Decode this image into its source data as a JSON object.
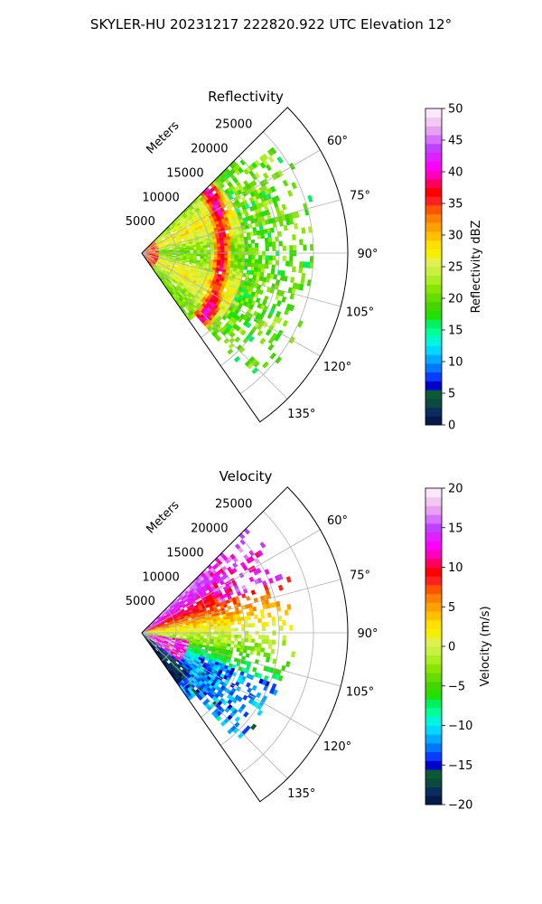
{
  "title": "SKYLER-HU  20231217  222820.922 UTC Elevation 12°",
  "colors": {
    "grid": "#b0b0b0",
    "axis": "#000000",
    "background": "#ffffff"
  },
  "chart_data": [
    {
      "type": "heatmap",
      "projection": "polar-sector",
      "title": "Reflectivity",
      "range_label": "Meters",
      "range_ticks": [
        5000,
        10000,
        15000,
        20000,
        25000
      ],
      "range_tick_labels": [
        "5000",
        "10000",
        "15000",
        "20000",
        "25000"
      ],
      "range_max": 30000,
      "theta_range_deg": [
        45,
        145
      ],
      "theta_ticks_deg": [
        60,
        75,
        90,
        105,
        120,
        135
      ],
      "theta_tick_labels": [
        "60°",
        "75°",
        "90°",
        "105°",
        "120°",
        "135°"
      ],
      "grid": true,
      "colorbar": {
        "label": "Reflectivity dBZ",
        "min": 0,
        "max": 50,
        "ticks": [
          0,
          5,
          10,
          15,
          20,
          25,
          30,
          35,
          40,
          45,
          50
        ],
        "tick_labels": [
          "0",
          "5",
          "10",
          "15",
          "20",
          "25",
          "30",
          "35",
          "40",
          "45",
          "50"
        ],
        "colors": [
          "#061a4a",
          "#0a2d5e",
          "#0b4a3f",
          "#0b5a35",
          "#0000cc",
          "#0a3cff",
          "#0077ff",
          "#00aaff",
          "#00d9ff",
          "#00f5e0",
          "#00ff99",
          "#00f060",
          "#22e000",
          "#44d400",
          "#66dd00",
          "#88e600",
          "#aaee22",
          "#c8f040",
          "#e0f050",
          "#f5f000",
          "#ffe000",
          "#ffc000",
          "#ffa000",
          "#ff7f00",
          "#ff5500",
          "#ff2020",
          "#ff0000",
          "#ff0060",
          "#ff00c0",
          "#ff00ff",
          "#e020ff",
          "#c040ff",
          "#d870ff",
          "#e8a0f0",
          "#f0c8f0",
          "#fbe8fb"
        ]
      },
      "field": {
        "description": "Sector-scan radar reflectivity field",
        "dominant_values": "mostly 20-30 dBZ near radar, arc of 30-40 dBZ near 11000-14000 m, sparse 15-22 dBZ beyond 15000 m out to ~25000 m"
      }
    },
    {
      "type": "heatmap",
      "projection": "polar-sector",
      "title": "Velocity",
      "range_label": "Meters",
      "range_ticks": [
        5000,
        10000,
        15000,
        20000,
        25000
      ],
      "range_tick_labels": [
        "5000",
        "10000",
        "15000",
        "20000",
        "25000"
      ],
      "range_max": 30000,
      "theta_range_deg": [
        45,
        145
      ],
      "theta_ticks_deg": [
        60,
        75,
        90,
        105,
        120,
        135
      ],
      "theta_tick_labels": [
        "60°",
        "75°",
        "90°",
        "105°",
        "120°",
        "135°"
      ],
      "grid": true,
      "colorbar": {
        "label": "Velocity (m/s)",
        "min": -20,
        "max": 20,
        "ticks": [
          -20,
          -15,
          -10,
          -5,
          0,
          5,
          10,
          15,
          20
        ],
        "tick_labels": [
          "−20",
          "−15",
          "−10",
          "−5",
          "0",
          "5",
          "10",
          "15",
          "20"
        ],
        "colors": [
          "#061a4a",
          "#0a2d5e",
          "#0b4a3f",
          "#0b5a35",
          "#0000cc",
          "#0a3cff",
          "#0077ff",
          "#00aaff",
          "#00d9ff",
          "#00f5e0",
          "#00ff99",
          "#00f060",
          "#22e000",
          "#44d400",
          "#66dd00",
          "#88e600",
          "#aaee22",
          "#c8f040",
          "#e0f050",
          "#f5f000",
          "#ffe000",
          "#ffc000",
          "#ffa000",
          "#ff7f00",
          "#ff5500",
          "#ff2020",
          "#ff0000",
          "#ff0060",
          "#ff00c0",
          "#ff00ff",
          "#e020ff",
          "#c040ff",
          "#d870ff",
          "#e8a0f0",
          "#f0c8f0",
          "#fbe8fb"
        ]
      },
      "field": {
        "description": "Sector-scan radar radial velocity field",
        "dominant_values": "positive 5-15 m/s toward upper azimuths (~50-75°), near 0 m/s mid sector, negative -5 to -12 m/s toward lower azimuths (~95-140°), 10-18 m/s core close to radar at ~100-120°"
      }
    }
  ]
}
